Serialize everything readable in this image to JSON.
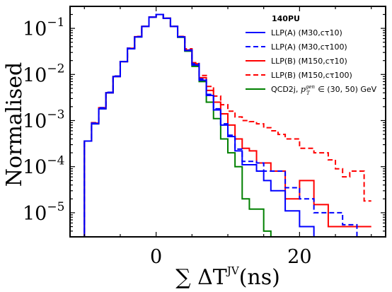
{
  "chart_data": {
    "type": "line",
    "title": "",
    "xlabel": "∑ ΔT^JV(ns)",
    "xlabel_parts": {
      "main": "∑ ΔT",
      "sup": "JV",
      "tail": "(ns)"
    },
    "ylabel": "Normalised",
    "yscale": "log",
    "xlim": [
      -12,
      32
    ],
    "ylim": [
      3e-06,
      0.3
    ],
    "x_ticks": [
      {
        "value": 0,
        "label": "0"
      },
      {
        "value": 20,
        "label": "20"
      }
    ],
    "y_ticks": [
      {
        "value": 0.1,
        "label": "10",
        "exp": "−1"
      },
      {
        "value": 0.01,
        "label": "10",
        "exp": "−2"
      },
      {
        "value": 0.001,
        "label": "10",
        "exp": "−3"
      },
      {
        "value": 0.0001,
        "label": "10",
        "exp": "−4"
      },
      {
        "value": 1e-05,
        "label": "10",
        "exp": "−5"
      }
    ],
    "grid": false,
    "legend_position": "top-right",
    "legend_title": "140PU",
    "bin_edges": [
      -10,
      -9,
      -8,
      -7,
      -6,
      -5,
      -4,
      -3,
      -2,
      -1,
      0,
      1,
      2,
      3,
      4,
      5,
      6,
      7,
      8,
      9,
      10,
      11,
      12,
      13,
      14,
      15,
      16,
      17,
      18,
      19,
      20,
      21,
      22,
      23,
      24,
      25,
      26,
      27,
      28,
      29,
      30
    ],
    "series": [
      {
        "name": "LLP(A) (M30,cτ10)",
        "color": "#0000ff",
        "style": "solid",
        "values": [
          0.00036,
          0.00085,
          0.0018,
          0.004,
          0.009,
          0.019,
          0.036,
          0.065,
          0.11,
          0.175,
          0.2,
          0.165,
          0.11,
          0.065,
          0.033,
          0.016,
          0.0075,
          0.0035,
          0.0017,
          0.0008,
          0.00045,
          0.00022,
          0.00011,
          0.00011,
          8e-05,
          5e-05,
          3e-05,
          3e-05,
          1.1e-05,
          1.1e-05,
          5e-06,
          5e-06,
          2.5e-06,
          2.5e-06,
          2.5e-06,
          2.5e-06,
          2.5e-06,
          2.5e-06,
          2.5e-06,
          2.5e-06
        ]
      },
      {
        "name": "LLP(A) (M30,cτ100)",
        "color": "#0000ff",
        "style": "dashed",
        "values": [
          0.00036,
          0.00088,
          0.0019,
          0.0041,
          0.0092,
          0.019,
          0.037,
          0.066,
          0.11,
          0.175,
          0.2,
          0.165,
          0.11,
          0.066,
          0.034,
          0.017,
          0.008,
          0.0037,
          0.0018,
          0.00085,
          0.00048,
          0.00024,
          0.00013,
          0.00013,
          0.00012,
          8e-05,
          8e-05,
          8e-05,
          3.5e-05,
          3.5e-05,
          2e-05,
          2e-05,
          1e-05,
          1e-05,
          1e-05,
          1e-05,
          5.5e-06,
          5.5e-06,
          2.5e-06,
          2.5e-06
        ]
      },
      {
        "name": "LLP(B) (M150,cτ10)",
        "color": "#ff0000",
        "style": "solid",
        "values": [
          0.00036,
          0.00088,
          0.0019,
          0.004,
          0.009,
          0.019,
          0.037,
          0.066,
          0.11,
          0.175,
          0.2,
          0.165,
          0.11,
          0.066,
          0.034,
          0.017,
          0.0085,
          0.0045,
          0.0025,
          0.0014,
          0.0008,
          0.0004,
          0.00025,
          0.00022,
          0.00012,
          0.00012,
          8e-05,
          8e-05,
          2e-05,
          2e-05,
          5e-05,
          5e-05,
          1.5e-05,
          1.5e-05,
          5e-06,
          5e-06,
          5e-06,
          5e-06,
          5e-06,
          5e-06
        ]
      },
      {
        "name": "LLP(B) (M150,cτ100)",
        "color": "#ff0000",
        "style": "dashed",
        "values": [
          0.00036,
          0.0009,
          0.0019,
          0.0041,
          0.0092,
          0.019,
          0.037,
          0.067,
          0.11,
          0.176,
          0.2,
          0.166,
          0.11,
          0.067,
          0.036,
          0.018,
          0.0095,
          0.0055,
          0.0034,
          0.0022,
          0.0016,
          0.0012,
          0.001,
          0.00095,
          0.00085,
          0.0007,
          0.0006,
          0.0005,
          0.0004,
          0.0004,
          0.00025,
          0.00025,
          0.0002,
          0.0002,
          0.00014,
          9e-05,
          6e-05,
          8e-05,
          8e-05,
          1.8e-05
        ]
      },
      {
        "name": "QCD2j, p_T^gen ∈ (30, 50) GeV",
        "name_parts": {
          "pre": "QCD2j, ",
          "p": "p",
          "sub": "T",
          "sup": "gen",
          "post": " ∈ (30, 50) GeV"
        },
        "color": "#008000",
        "style": "solid",
        "values": [
          0.00036,
          0.00085,
          0.0018,
          0.004,
          0.009,
          0.019,
          0.036,
          0.065,
          0.11,
          0.175,
          0.2,
          0.165,
          0.11,
          0.064,
          0.032,
          0.015,
          0.007,
          0.0025,
          0.0011,
          0.0004,
          0.0002,
          0.0001,
          2e-05,
          1.2e-05,
          1.2e-05,
          4e-06,
          2.5e-06,
          2.5e-06,
          2.5e-06,
          2.5e-06,
          2.5e-06,
          2.5e-06,
          2.5e-06,
          2.5e-06,
          2.5e-06,
          2.5e-06,
          2.5e-06,
          2.5e-06,
          2.5e-06,
          2.5e-06
        ]
      }
    ]
  }
}
